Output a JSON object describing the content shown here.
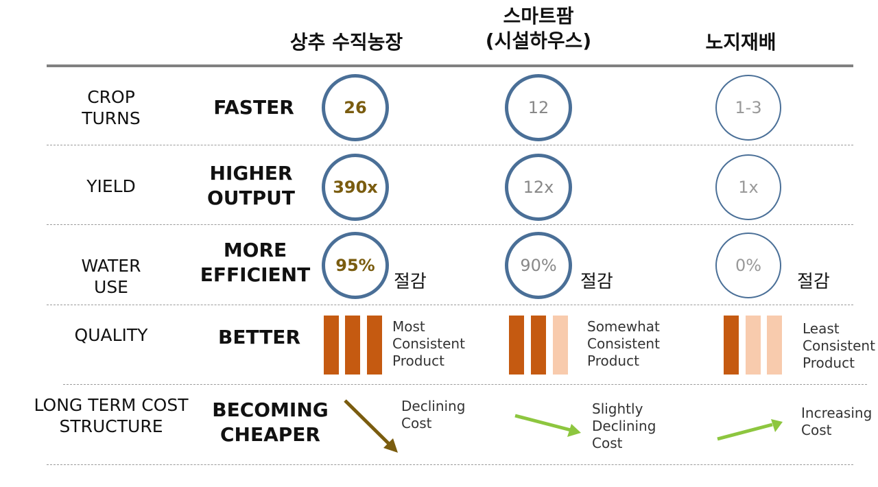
{
  "columns": {
    "vertical": "상추 수직농장",
    "smartfarm_line1": "스마트팜",
    "smartfarm_line2": "(시설하우스)",
    "openfield": "노지재배"
  },
  "rows": [
    {
      "label_lines": [
        "CROP",
        "TURNS"
      ],
      "benefit_lines": [
        "FASTER"
      ],
      "values": [
        "26",
        "12",
        "1-3"
      ]
    },
    {
      "label_lines": [
        "YIELD"
      ],
      "benefit_lines": [
        "HIGHER",
        "OUTPUT"
      ],
      "values": [
        "390x",
        "12x",
        "1x"
      ]
    },
    {
      "label_lines": [
        "WATER",
        "USE"
      ],
      "benefit_lines": [
        "MORE",
        "EFFICIENT"
      ],
      "values": [
        "95%",
        "90%",
        "0%"
      ],
      "suffix": "절감"
    },
    {
      "label_lines": [
        "QUALITY"
      ],
      "benefit_lines": [
        "BETTER"
      ],
      "bars_dark_of_3": [
        3,
        2,
        1
      ],
      "descriptions": [
        [
          "Most",
          "Consistent",
          "Product"
        ],
        [
          "Somewhat",
          "Consistent",
          "Product"
        ],
        [
          "Least",
          "Consistent",
          "Product"
        ]
      ]
    },
    {
      "label_lines": [
        "LONG TERM COST",
        "STRUCTURE"
      ],
      "benefit_lines": [
        "BECOMING",
        "CHEAPER"
      ],
      "trends": [
        {
          "direction": "declining",
          "color": "#7a5c0f",
          "lines": [
            "Declining",
            "Cost"
          ]
        },
        {
          "direction": "slightly-declining",
          "color": "#8dc63f",
          "lines": [
            "Slightly",
            "Declining",
            "Cost"
          ]
        },
        {
          "direction": "increasing",
          "color": "#8dc63f",
          "lines": [
            "Increasing",
            "Cost"
          ]
        }
      ]
    }
  ],
  "colors": {
    "circle_border": "#4a6f97",
    "highlight_value": "#7a5c0f",
    "bar_dark": "#c55a11",
    "bar_light": "#f8cbad"
  }
}
